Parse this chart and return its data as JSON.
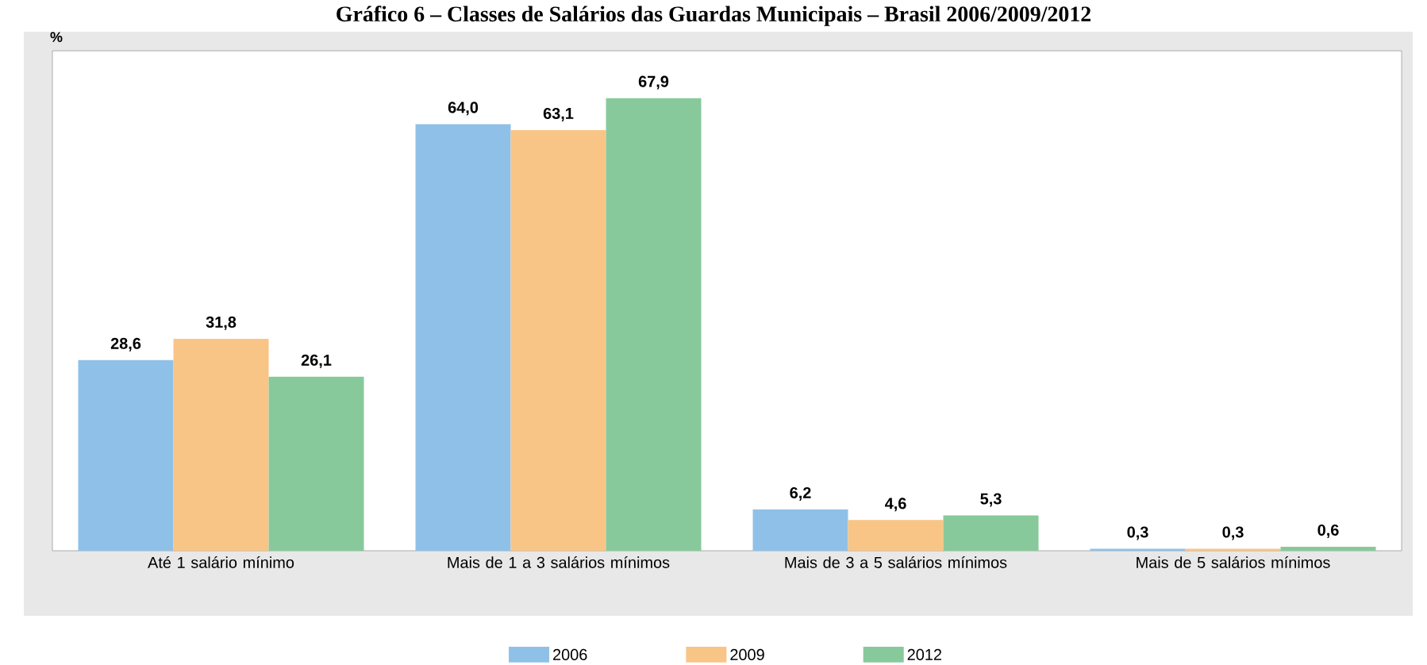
{
  "chart_data": {
    "type": "bar",
    "title": "Gráfico 6 – Classes de Salários das Guardas Municipais – Brasil 2006/2009/2012",
    "ylabel": "%",
    "categories": [
      "Até 1 salário mínimo",
      "Mais de 1 a 3 salários mínimos",
      "Mais de 3 a 5 salários mínimos",
      "Mais de 5 salários mínimos"
    ],
    "series": [
      {
        "name": "2006",
        "color": "#8fc1e8",
        "values": [
          28.6,
          64.0,
          6.2,
          0.3
        ],
        "value_labels": [
          "28,6",
          "64,0",
          "6,2",
          "0,3"
        ]
      },
      {
        "name": "2009",
        "color": "#f9c586",
        "values": [
          31.8,
          63.1,
          4.6,
          0.3
        ],
        "value_labels": [
          "31,8",
          "63,1",
          "4,6",
          "0,3"
        ]
      },
      {
        "name": "2012",
        "color": "#88c99c",
        "values": [
          26.1,
          67.9,
          5.3,
          0.6
        ],
        "value_labels": [
          "26,1",
          "67,9",
          "5,3",
          "0,6"
        ]
      }
    ],
    "ylim": [
      0,
      75
    ],
    "tick_labels": "x",
    "legend": "bottom",
    "grid": false
  }
}
